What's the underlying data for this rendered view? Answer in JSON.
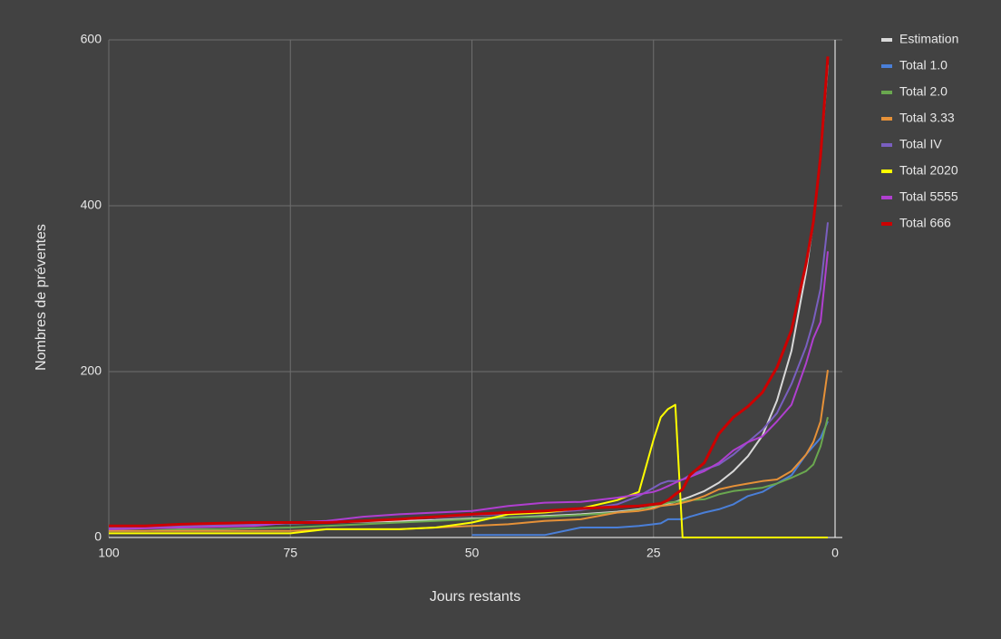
{
  "chart_data": {
    "type": "line",
    "x_label": "Jours restants",
    "y_label": "Nombres de préventes",
    "x": [
      100,
      95,
      90,
      85,
      80,
      75,
      70,
      65,
      60,
      55,
      50,
      45,
      40,
      35,
      30,
      27,
      25,
      24,
      23,
      22,
      21,
      20,
      18,
      16,
      14,
      12,
      10,
      8,
      6,
      4,
      3,
      2,
      1
    ],
    "xlim": [
      100,
      0
    ],
    "xticks": [
      100,
      75,
      50,
      25,
      0
    ],
    "ylim": [
      0,
      600
    ],
    "yticks": [
      0,
      200,
      400,
      600
    ],
    "grid": true,
    "legend": "right",
    "series": [
      {
        "name": "Estimation",
        "color": "#d9d9d9",
        "values": [
          12,
          13,
          14,
          15,
          16,
          17,
          18,
          19,
          20,
          21,
          23,
          24,
          26,
          28,
          31,
          34,
          37,
          39,
          41,
          43,
          46,
          49,
          56,
          66,
          80,
          98,
          123,
          165,
          225,
          320,
          380,
          460,
          570
        ]
      },
      {
        "name": "Total 1.0",
        "color": "#4a7fd8",
        "values": [
          null,
          null,
          null,
          null,
          null,
          null,
          null,
          null,
          null,
          null,
          3,
          3,
          3,
          12,
          12,
          14,
          16,
          17,
          22,
          22,
          22,
          25,
          30,
          34,
          40,
          50,
          55,
          65,
          75,
          100,
          110,
          120,
          140
        ]
      },
      {
        "name": "Total 2.0",
        "color": "#6aa84f",
        "values": [
          8,
          8,
          10,
          10,
          11,
          12,
          14,
          16,
          18,
          20,
          22,
          24,
          25,
          27,
          30,
          33,
          38,
          40,
          42,
          43,
          44,
          45,
          46,
          52,
          56,
          58,
          60,
          65,
          72,
          80,
          88,
          110,
          145
        ]
      },
      {
        "name": "Total 3.33",
        "color": "#e69138",
        "values": [
          8,
          8,
          8,
          8,
          8,
          8,
          10,
          10,
          10,
          12,
          14,
          16,
          20,
          22,
          30,
          32,
          35,
          38,
          39,
          40,
          42,
          44,
          50,
          58,
          62,
          65,
          68,
          70,
          80,
          100,
          115,
          140,
          202
        ]
      },
      {
        "name": "Total IV",
        "color": "#7a5fc0",
        "values": [
          12,
          13,
          14,
          15,
          16,
          17,
          18,
          20,
          22,
          24,
          27,
          28,
          30,
          33,
          40,
          50,
          60,
          65,
          68,
          68,
          70,
          75,
          82,
          88,
          100,
          115,
          130,
          150,
          185,
          230,
          260,
          300,
          380
        ]
      },
      {
        "name": "Total 2020",
        "color": "#ffff00",
        "values": [
          5,
          5,
          5,
          5,
          5,
          5,
          10,
          10,
          10,
          12,
          18,
          28,
          30,
          35,
          45,
          55,
          118,
          145,
          155,
          160,
          0,
          0,
          0,
          0,
          0,
          0,
          0,
          0,
          0,
          0,
          0,
          0,
          0
        ]
      },
      {
        "name": "Total 5555",
        "color": "#b03fd0",
        "values": [
          10,
          11,
          12,
          13,
          14,
          18,
          20,
          25,
          28,
          30,
          32,
          38,
          42,
          43,
          48,
          52,
          55,
          58,
          62,
          66,
          70,
          73,
          80,
          90,
          105,
          115,
          122,
          140,
          160,
          210,
          240,
          260,
          345
        ]
      },
      {
        "name": "Total 666",
        "color": "#cc0000",
        "values": [
          14,
          14,
          16,
          17,
          18,
          18,
          18,
          20,
          22,
          25,
          28,
          30,
          32,
          35,
          37,
          38,
          40,
          41,
          45,
          52,
          58,
          75,
          90,
          125,
          145,
          158,
          175,
          205,
          250,
          330,
          380,
          460,
          580
        ]
      }
    ]
  }
}
